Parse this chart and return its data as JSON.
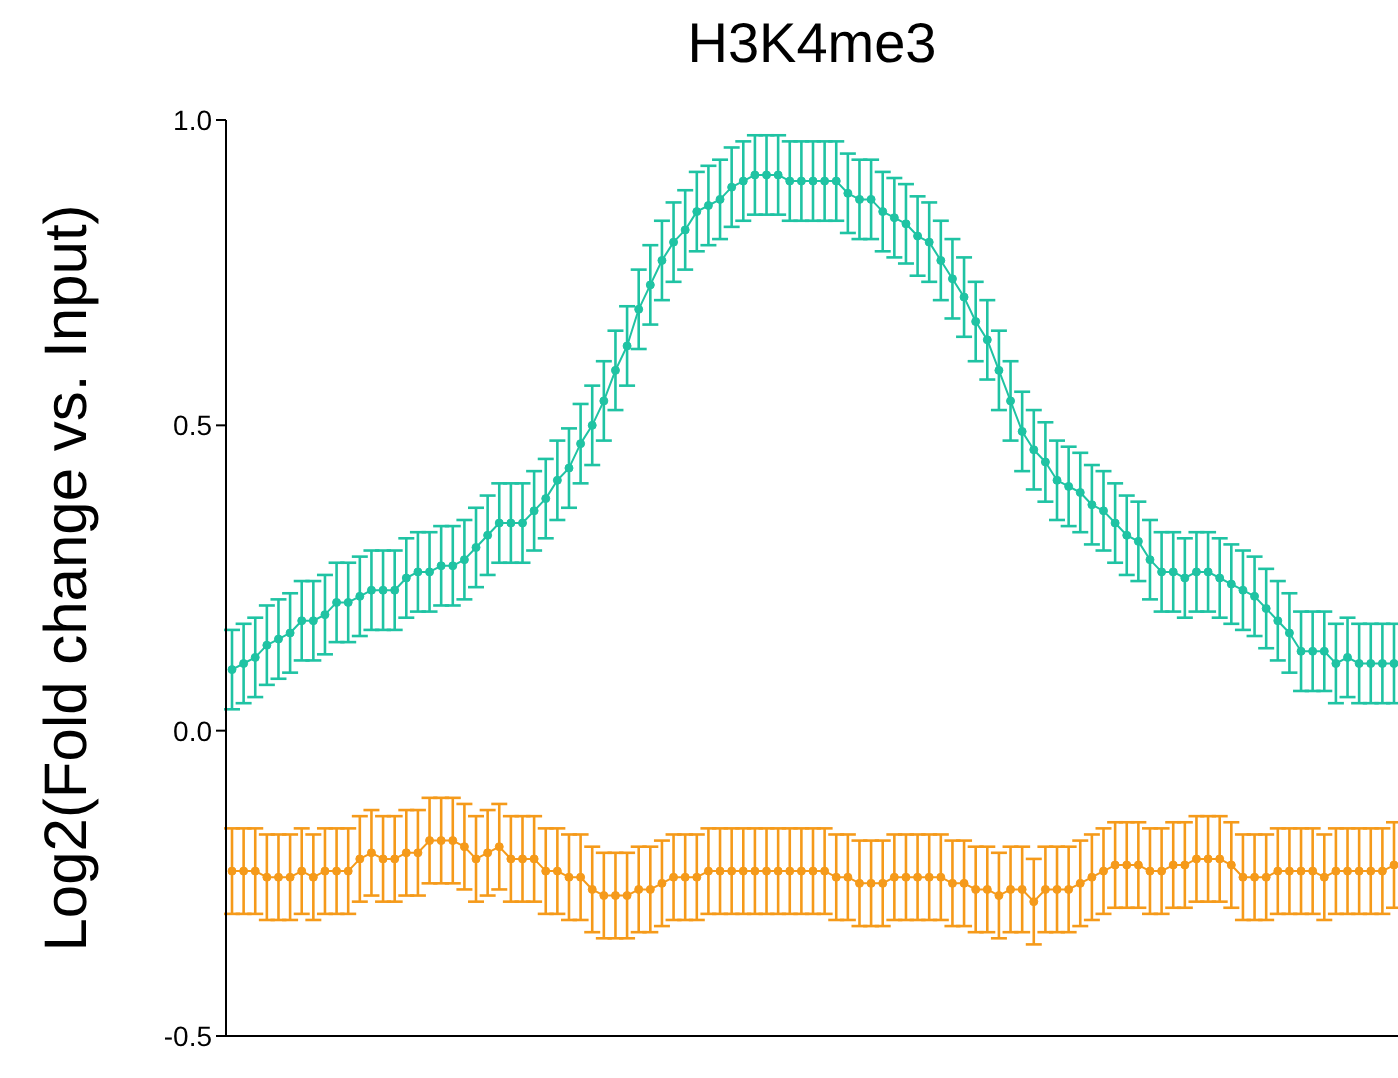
{
  "chart_data": {
    "type": "line",
    "title": "H3K4me3",
    "ylabel": "Log2(Fold change vs. Input)",
    "marker": "circle",
    "grid": false,
    "tick_labels": "y",
    "categories": [
      null,
      null,
      null,
      null,
      null,
      null,
      null,
      null,
      null,
      null,
      null,
      null,
      null,
      null,
      null,
      null,
      null,
      null,
      null,
      null,
      null,
      null,
      null,
      null,
      null,
      null,
      null,
      null,
      null,
      null,
      null,
      null,
      null,
      null,
      null,
      null,
      null,
      null,
      null,
      null,
      null,
      null,
      null,
      null,
      null,
      null,
      null,
      null,
      null,
      null,
      null,
      null,
      null,
      null,
      null,
      null,
      null,
      null,
      null,
      null,
      null,
      null,
      null,
      null,
      null,
      null,
      null,
      null,
      null,
      null,
      null,
      null,
      null,
      null,
      null,
      null,
      null,
      null,
      null,
      null,
      null,
      null,
      null,
      null,
      null,
      null,
      null,
      null,
      null,
      null,
      null,
      null,
      null,
      null,
      null,
      null,
      null,
      null,
      null,
      null,
      null
    ],
    "ylim": [
      -0.5,
      1.0
    ],
    "yticks": [
      -0.5,
      {
        "value": 0,
        "label": "0.0"
      },
      0.5,
      {
        "value": 1,
        "label": "1.0"
      }
    ],
    "series": [
      {
        "color": "#1fc3a3",
        "values": [
          0.1,
          0.11,
          0.12,
          0.14,
          0.15,
          0.16,
          0.18,
          0.18,
          0.19,
          0.21,
          0.21,
          0.22,
          0.23,
          0.23,
          0.23,
          0.25,
          0.26,
          0.26,
          0.27,
          0.27,
          0.28,
          0.3,
          0.32,
          0.34,
          0.34,
          0.34,
          0.36,
          0.38,
          0.41,
          0.43,
          0.47,
          0.5,
          0.54,
          0.59,
          0.63,
          0.69,
          0.73,
          0.77,
          0.8,
          0.82,
          0.85,
          0.86,
          0.87,
          0.89,
          0.9,
          0.91,
          0.91,
          0.91,
          0.9,
          0.9,
          0.9,
          0.9,
          0.9,
          0.88,
          0.87,
          0.87,
          0.85,
          0.84,
          0.83,
          0.81,
          0.8,
          0.77,
          0.74,
          0.71,
          0.67,
          0.64,
          0.59,
          0.54,
          0.49,
          0.46,
          0.44,
          0.41,
          0.4,
          0.39,
          0.37,
          0.36,
          0.34,
          0.32,
          0.31,
          0.28,
          0.26,
          0.26,
          0.25,
          0.26,
          0.26,
          0.25,
          0.24,
          0.23,
          0.22,
          0.2,
          0.18,
          0.16,
          0.13,
          0.13,
          0.13,
          0.11,
          0.12,
          0.11,
          0.11,
          0.11,
          0.11
        ],
        "errors": [
          0.065,
          0.065,
          0.065,
          0.065,
          0.065,
          0.065,
          0.065,
          0.065,
          0.065,
          0.065,
          0.065,
          0.065,
          0.065,
          0.065,
          0.065,
          0.065,
          0.065,
          0.065,
          0.065,
          0.065,
          0.065,
          0.065,
          0.065,
          0.065,
          0.065,
          0.065,
          0.065,
          0.065,
          0.065,
          0.065,
          0.065,
          0.065,
          0.065,
          0.065,
          0.065,
          0.065,
          0.065,
          0.065,
          0.065,
          0.065,
          0.065,
          0.065,
          0.065,
          0.065,
          0.065,
          0.065,
          0.065,
          0.065,
          0.065,
          0.065,
          0.065,
          0.065,
          0.065,
          0.065,
          0.065,
          0.065,
          0.065,
          0.065,
          0.065,
          0.065,
          0.065,
          0.065,
          0.065,
          0.065,
          0.065,
          0.065,
          0.065,
          0.065,
          0.065,
          0.065,
          0.065,
          0.065,
          0.065,
          0.065,
          0.065,
          0.065,
          0.065,
          0.065,
          0.065,
          0.065,
          0.065,
          0.065,
          0.065,
          0.065,
          0.065,
          0.065,
          0.065,
          0.065,
          0.065,
          0.065,
          0.065,
          0.065,
          0.065,
          0.065,
          0.065,
          0.065,
          0.065,
          0.065,
          0.065,
          0.065,
          0.065
        ]
      },
      {
        "color": "#f59a1a",
        "values": [
          -0.23,
          -0.23,
          -0.23,
          -0.24,
          -0.24,
          -0.24,
          -0.23,
          -0.24,
          -0.23,
          -0.23,
          -0.23,
          -0.21,
          -0.2,
          -0.21,
          -0.21,
          -0.2,
          -0.2,
          -0.18,
          -0.18,
          -0.18,
          -0.19,
          -0.21,
          -0.2,
          -0.19,
          -0.21,
          -0.21,
          -0.21,
          -0.23,
          -0.23,
          -0.24,
          -0.24,
          -0.26,
          -0.27,
          -0.27,
          -0.27,
          -0.26,
          -0.26,
          -0.25,
          -0.24,
          -0.24,
          -0.24,
          -0.23,
          -0.23,
          -0.23,
          -0.23,
          -0.23,
          -0.23,
          -0.23,
          -0.23,
          -0.23,
          -0.23,
          -0.23,
          -0.24,
          -0.24,
          -0.25,
          -0.25,
          -0.25,
          -0.24,
          -0.24,
          -0.24,
          -0.24,
          -0.24,
          -0.25,
          -0.25,
          -0.26,
          -0.26,
          -0.27,
          -0.26,
          -0.26,
          -0.28,
          -0.26,
          -0.26,
          -0.26,
          -0.25,
          -0.24,
          -0.23,
          -0.22,
          -0.22,
          -0.22,
          -0.23,
          -0.23,
          -0.22,
          -0.22,
          -0.21,
          -0.21,
          -0.21,
          -0.22,
          -0.24,
          -0.24,
          -0.24,
          -0.23,
          -0.23,
          -0.23,
          -0.23,
          -0.24,
          -0.23,
          -0.23,
          -0.23,
          -0.23,
          -0.23,
          -0.22
        ],
        "errors": [
          0.07,
          0.07,
          0.07,
          0.07,
          0.07,
          0.07,
          0.07,
          0.07,
          0.07,
          0.07,
          0.07,
          0.07,
          0.07,
          0.07,
          0.07,
          0.07,
          0.07,
          0.07,
          0.07,
          0.07,
          0.07,
          0.07,
          0.07,
          0.07,
          0.07,
          0.07,
          0.07,
          0.07,
          0.07,
          0.07,
          0.07,
          0.07,
          0.07,
          0.07,
          0.07,
          0.07,
          0.07,
          0.07,
          0.07,
          0.07,
          0.07,
          0.07,
          0.07,
          0.07,
          0.07,
          0.07,
          0.07,
          0.07,
          0.07,
          0.07,
          0.07,
          0.07,
          0.07,
          0.07,
          0.07,
          0.07,
          0.07,
          0.07,
          0.07,
          0.07,
          0.07,
          0.07,
          0.07,
          0.07,
          0.07,
          0.07,
          0.07,
          0.07,
          0.07,
          0.07,
          0.07,
          0.07,
          0.07,
          0.07,
          0.07,
          0.07,
          0.07,
          0.07,
          0.07,
          0.07,
          0.07,
          0.07,
          0.07,
          0.07,
          0.07,
          0.07,
          0.07,
          0.07,
          0.07,
          0.07,
          0.07,
          0.07,
          0.07,
          0.07,
          0.07,
          0.07,
          0.07,
          0.07,
          0.07,
          0.07,
          0.07
        ]
      }
    ]
  }
}
